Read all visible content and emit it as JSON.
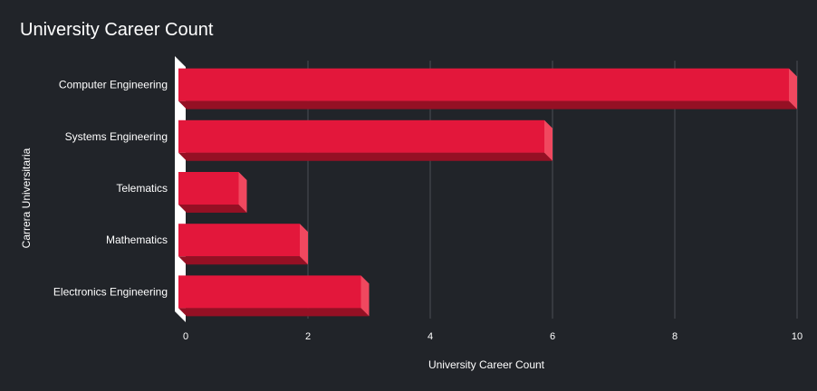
{
  "chart_data": {
    "type": "bar",
    "orientation": "horizontal",
    "title": "University Career Count",
    "xlabel": "University Career Count",
    "ylabel": "Carrera Universitaria",
    "categories": [
      "Computer Engineering",
      "Systems Engineering",
      "Telematics",
      "Mathematics",
      "Electronics Engineering"
    ],
    "values": [
      10,
      6,
      1,
      2,
      3
    ],
    "xlim": [
      0,
      10
    ],
    "xticks": [
      0,
      2,
      4,
      6,
      8,
      10
    ],
    "grid": "vertical",
    "legend": "none",
    "style_3d": true
  },
  "colors": {
    "background": "#212429",
    "bar_front": "#e3173b",
    "bar_side": "#f0485f",
    "bar_bottom": "#951024",
    "grid": "#4a4e55",
    "text": "#ffffff",
    "wall": "#ffffff"
  }
}
